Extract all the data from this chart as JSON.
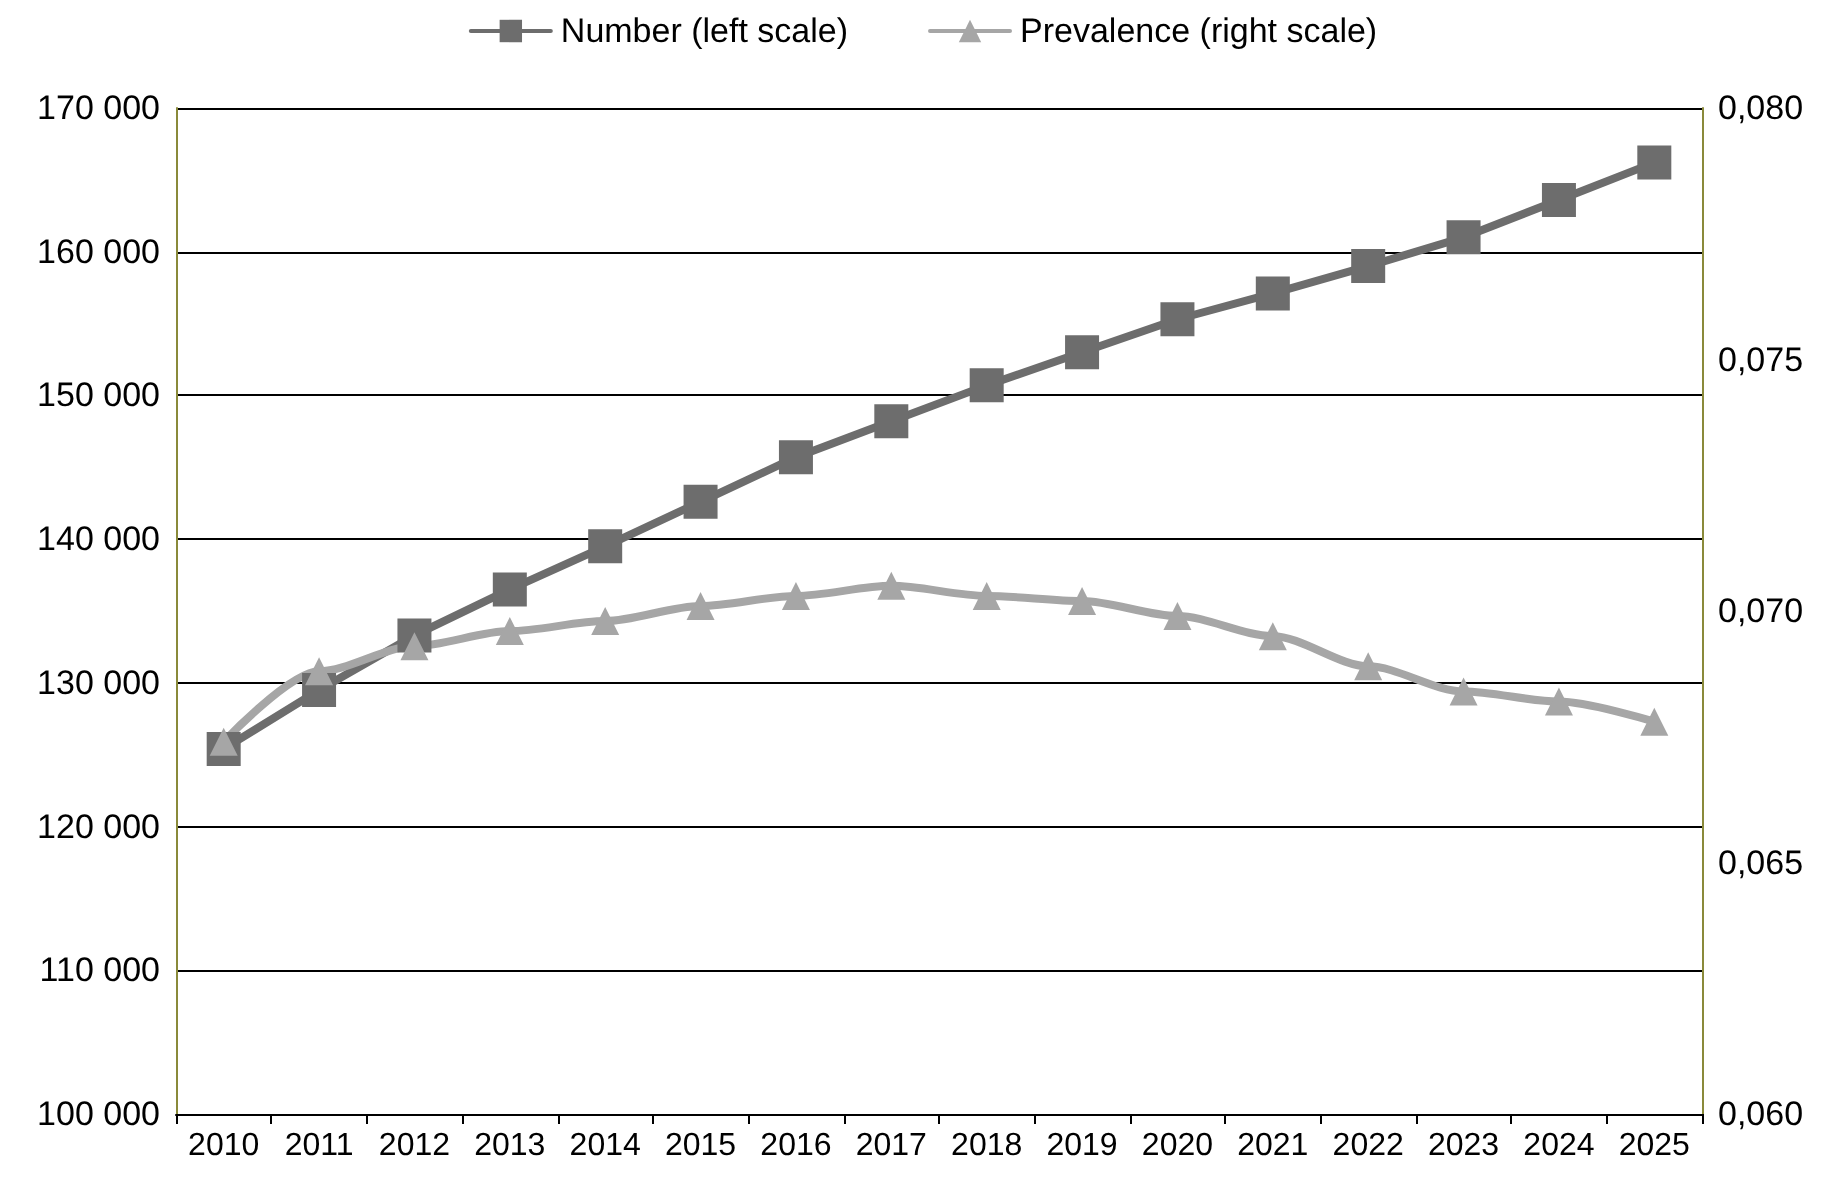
{
  "chart_data": {
    "type": "line",
    "categories": [
      "2010",
      "2011",
      "2012",
      "2013",
      "2014",
      "2015",
      "2016",
      "2017",
      "2018",
      "2019",
      "2020",
      "2021",
      "2022",
      "2023",
      "2024",
      "2025"
    ],
    "series": [
      {
        "name": "Number (left scale)",
        "color": "#6d6d6d",
        "marker": "square",
        "values": [
          125400,
          129500,
          133300,
          136500,
          139500,
          142600,
          145700,
          148200,
          150700,
          153000,
          155300,
          157100,
          159000,
          161000,
          163600,
          166200
        ]
      },
      {
        "name": "Prevalence (right scale)",
        "color": "#a6a6a6",
        "marker": "triangle",
        "axis": "y2",
        "values": [
          0.0674,
          0.0688,
          0.0693,
          0.0696,
          0.0698,
          0.0701,
          0.0703,
          0.0705,
          0.0703,
          0.0702,
          0.0699,
          0.0695,
          0.0689,
          0.0684,
          0.0682,
          0.0678
        ]
      }
    ],
    "ylim": [
      100000,
      170000
    ],
    "yticks": [
      {
        "value": 100000,
        "label": "100 000"
      },
      {
        "value": 110000,
        "label": "110 000"
      },
      {
        "value": 120000,
        "label": "120 000"
      },
      {
        "value": 130000,
        "label": "130 000"
      },
      {
        "value": 140000,
        "label": "140 000"
      },
      {
        "value": 150000,
        "label": "150 000"
      },
      {
        "value": 160000,
        "label": "160 000"
      },
      {
        "value": 170000,
        "label": "170 000"
      }
    ],
    "y2lim": [
      0.06,
      0.08
    ],
    "y2ticks": [
      {
        "value": 0.06,
        "label": "0,060"
      },
      {
        "value": 0.065,
        "label": "0,065"
      },
      {
        "value": 0.07,
        "label": "0,070"
      },
      {
        "value": 0.075,
        "label": "0,075"
      },
      {
        "value": 0.08,
        "label": "0,080"
      }
    ],
    "grid": "y",
    "legend": "top"
  }
}
